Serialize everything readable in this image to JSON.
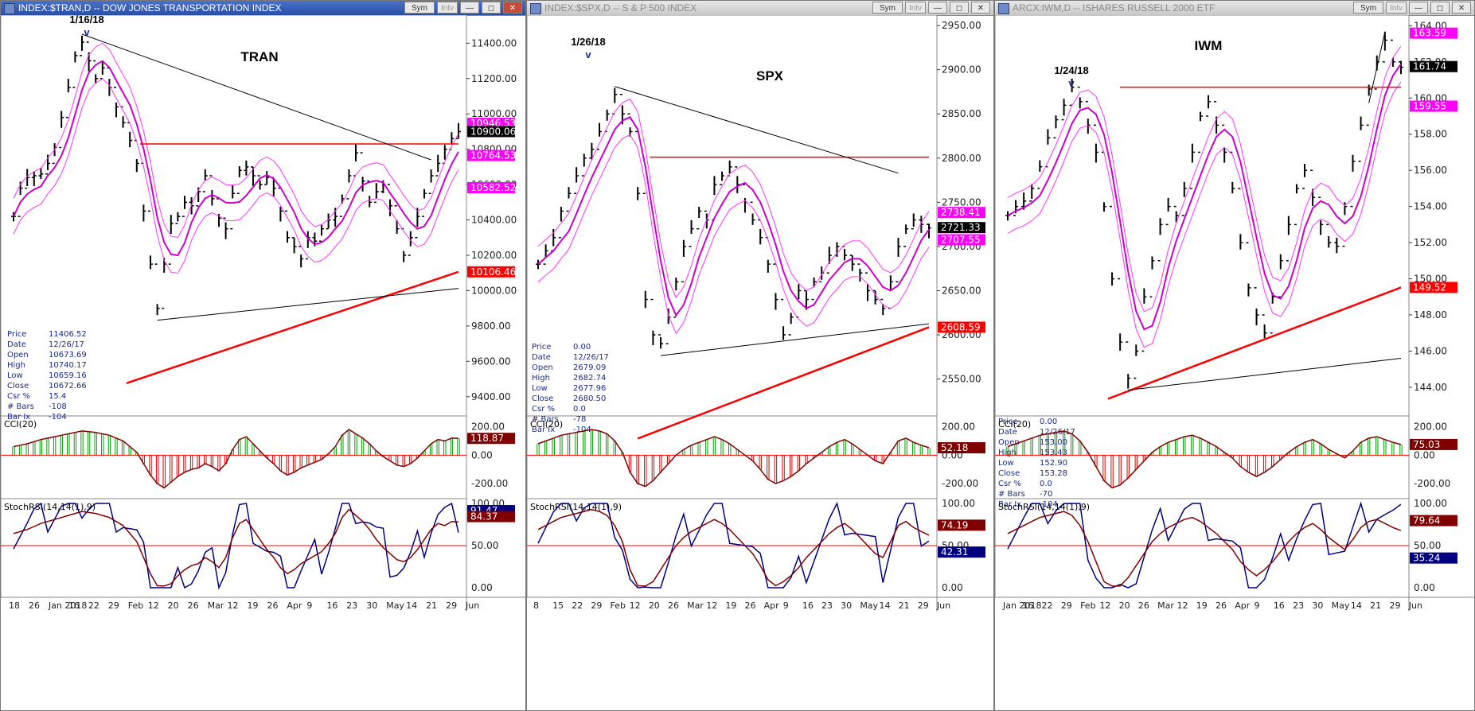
{
  "chart_data": [
    {
      "type": "bar",
      "window_title": "INDEX:$TRAN,D -- DOW JONES TRANSPORTATION INDEX",
      "title": "TRAN",
      "sym_btn": "Sym",
      "intv_btn": "Intv",
      "peak_date": "1/16/18",
      "peak_marker": "v",
      "price_ticks": [
        "11400.00",
        "11200.00",
        "11000.00",
        "10800.00",
        "10600.00",
        "10400.00",
        "10200.00",
        "10000.00",
        "9800.00",
        "9600.00",
        "9400.00"
      ],
      "price_values": [
        11400,
        11200,
        11000,
        10800,
        10600,
        10400,
        10200,
        10000,
        9800,
        9600,
        9400
      ],
      "ylim": [
        9300,
        11550
      ],
      "price_badges": [
        {
          "label": "10946.53",
          "value": 10946.53,
          "color": "#ff00ff",
          "text": "#fff"
        },
        {
          "label": "10900.06",
          "value": 10900.06,
          "color": "#000000",
          "text": "#fff"
        },
        {
          "label": "10764.53",
          "value": 10764.53,
          "color": "#ff00ff",
          "text": "#fff"
        },
        {
          "label": "10582.52",
          "value": 10582.52,
          "color": "#ff00ff",
          "text": "#fff"
        },
        {
          "label": "10106.46",
          "value": 10106.46,
          "color": "#ff0000",
          "text": "#fff"
        }
      ],
      "resistance": 10830,
      "closes": [
        10420,
        10580,
        10640,
        10650,
        10660,
        10720,
        10810,
        10980,
        11150,
        11330,
        11406,
        11300,
        11200,
        11260,
        11150,
        11040,
        10950,
        10850,
        10720,
        10450,
        10150,
        9900,
        10150,
        10380,
        10420,
        10500,
        10480,
        10560,
        10650,
        10520,
        10410,
        10350,
        10550,
        10680,
        10700,
        10650,
        10600,
        10640,
        10580,
        10450,
        10300,
        10250,
        10180,
        10300,
        10280,
        10350,
        10400,
        10420,
        10520,
        10650,
        10780,
        10620,
        10500,
        10560,
        10600,
        10480,
        10350,
        10200,
        10300,
        10420,
        10550,
        10650,
        10720,
        10800,
        10860,
        10900
      ],
      "info": {
        "Price": "11406.52",
        "Date": "12/26/17",
        "Open": "10673.69",
        "High": "10740.17",
        "Low": "10659.16",
        "Close": "10672.66",
        "Csr %": "15.4",
        "# Bars": "-108",
        "Bar Ix": "-104"
      },
      "cci_label": "CCI(20)",
      "cci_ticks": [
        "200.00",
        "0.00",
        "-200.00"
      ],
      "cci_values": [
        200,
        0,
        -200
      ],
      "cci_badge": {
        "label": "118.87",
        "color": "#800000"
      },
      "cci": [
        60,
        70,
        80,
        95,
        110,
        120,
        130,
        140,
        150,
        160,
        170,
        165,
        160,
        150,
        140,
        120,
        100,
        60,
        20,
        -60,
        -140,
        -200,
        -230,
        -190,
        -150,
        -120,
        -100,
        -90,
        -60,
        -80,
        -110,
        -60,
        40,
        110,
        130,
        80,
        30,
        -20,
        -60,
        -110,
        -140,
        -120,
        -90,
        -70,
        -50,
        -30,
        10,
        60,
        140,
        180,
        150,
        120,
        80,
        30,
        -10,
        -40,
        -70,
        -80,
        -60,
        -20,
        30,
        80,
        110,
        100,
        120,
        118
      ],
      "stoch_label": "StochRSI(14,14(1),9)",
      "stoch_ticks": [
        "100.00",
        "50.00",
        "0.00"
      ],
      "stoch_values": [
        100,
        50,
        0
      ],
      "stoch_badges": [
        {
          "label": "91.47",
          "color": "#000080"
        },
        {
          "label": "84.37",
          "color": "#800000"
        }
      ],
      "x_ticks": [
        "18",
        "26",
        "Jan 2018",
        "16",
        "22",
        "29",
        "Feb",
        "12",
        "20",
        "26",
        "Mar",
        "12",
        "19",
        "26",
        "Apr",
        "9",
        "16",
        "23",
        "30",
        "May",
        "14",
        "21",
        "29",
        "Jun"
      ]
    },
    {
      "type": "bar",
      "window_title": "INDEX:$SPX,D -- S & P 500 INDEX",
      "title": "SPX",
      "sym_btn": "Sym",
      "intv_btn": "Intv",
      "peak_date": "1/26/18",
      "peak_marker": "v",
      "price_ticks": [
        "2950.00",
        "2900.00",
        "2850.00",
        "2800.00",
        "2750.00",
        "2700.00",
        "2650.00",
        "2600.00",
        "2550.00"
      ],
      "price_values": [
        2950,
        2900,
        2850,
        2800,
        2750,
        2700,
        2650,
        2600,
        2550
      ],
      "ylim": [
        2510,
        2960
      ],
      "price_badges": [
        {
          "label": "2738.41",
          "value": 2738.41,
          "color": "#ff00ff",
          "text": "#fff"
        },
        {
          "label": "2721.33",
          "value": 2721.33,
          "color": "#000000",
          "text": "#fff"
        },
        {
          "label": "2707.55",
          "value": 2707.55,
          "color": "#ff00ff",
          "text": "#fff"
        },
        {
          "label": "2608.59",
          "value": 2608.59,
          "color": "#ff0000",
          "text": "#fff"
        }
      ],
      "resistance": 2801,
      "closes": [
        2680,
        2695,
        2710,
        2740,
        2760,
        2780,
        2800,
        2810,
        2830,
        2850,
        2872,
        2850,
        2830,
        2760,
        2640,
        2600,
        2590,
        2620,
        2660,
        2700,
        2720,
        2740,
        2730,
        2770,
        2780,
        2790,
        2770,
        2750,
        2730,
        2710,
        2680,
        2640,
        2600,
        2620,
        2650,
        2640,
        2660,
        2670,
        2690,
        2700,
        2690,
        2680,
        2670,
        2650,
        2640,
        2630,
        2660,
        2700,
        2720,
        2730,
        2725,
        2721
      ],
      "info": {
        "Price": "0.00",
        "Date": "12/26/17",
        "Open": "2679.09",
        "High": "2682.74",
        "Low": "2677.96",
        "Close": "2680.50",
        "Csr %": "0.0",
        "# Bars": "-78",
        "Bar Ix": "-104"
      },
      "cci_label": "CCI(20)",
      "cci_ticks": [
        "200.00",
        "0.00",
        "-200.00"
      ],
      "cci_values": [
        200,
        0,
        -200
      ],
      "cci_badge": {
        "label": "52.18",
        "color": "#800000"
      },
      "cci": [
        80,
        100,
        120,
        140,
        150,
        160,
        170,
        180,
        170,
        150,
        100,
        20,
        -120,
        -200,
        -220,
        -180,
        -120,
        -60,
        0,
        40,
        70,
        90,
        110,
        130,
        110,
        80,
        40,
        0,
        -40,
        -100,
        -170,
        -200,
        -180,
        -150,
        -110,
        -60,
        -20,
        20,
        60,
        90,
        110,
        80,
        40,
        0,
        -40,
        -60,
        20,
        100,
        120,
        90,
        70,
        52
      ],
      "stoch_label": "StochRSI(14,14(1),9)",
      "stoch_ticks": [
        "100.00",
        "50.00",
        "0.00"
      ],
      "stoch_values": [
        100,
        50,
        0
      ],
      "stoch_badges": [
        {
          "label": "74.19",
          "color": "#800000"
        },
        {
          "label": "42.31",
          "color": "#000080"
        }
      ],
      "x_ticks": [
        "8",
        "15",
        "22",
        "29",
        "Feb",
        "12",
        "20",
        "26",
        "Mar",
        "12",
        "19",
        "26",
        "Apr",
        "9",
        "16",
        "23",
        "30",
        "May",
        "14",
        "21",
        "29",
        "Jun"
      ]
    },
    {
      "type": "bar",
      "window_title": "ARCX:IWM,D -- ISHARES RUSSELL 2000 ETF",
      "title": "IWM",
      "sym_btn": "Sym",
      "intv_btn": "Intv",
      "peak_date": "1/24/18",
      "peak_marker": "v",
      "price_ticks": [
        "164.00",
        "162.00",
        "160.00",
        "158.00",
        "156.00",
        "154.00",
        "152.00",
        "150.00",
        "148.00",
        "146.00",
        "144.00"
      ],
      "price_values": [
        164,
        162,
        160,
        158,
        156,
        154,
        152,
        150,
        148,
        146,
        144
      ],
      "ylim": [
        142.5,
        164.5
      ],
      "price_badges": [
        {
          "label": "163.59",
          "value": 163.59,
          "color": "#ff00ff",
          "text": "#fff"
        },
        {
          "label": "161.74",
          "value": 161.74,
          "color": "#000000",
          "text": "#fff"
        },
        {
          "label": "159.55",
          "value": 159.55,
          "color": "#ff00ff",
          "text": "#fff"
        },
        {
          "label": "149.52",
          "value": 149.52,
          "color": "#ff0000",
          "text": "#fff"
        }
      ],
      "resistance": 160.6,
      "closes": [
        153.5,
        154.0,
        154.3,
        155.0,
        156.2,
        157.8,
        158.8,
        159.6,
        160.6,
        159.8,
        158.5,
        157.0,
        154.0,
        150.0,
        146.5,
        144.5,
        146.0,
        149.0,
        151.0,
        153.0,
        154.0,
        153.5,
        155.0,
        157.0,
        159.0,
        159.8,
        158.5,
        157.0,
        155.0,
        152.0,
        149.5,
        148.0,
        147.0,
        149.0,
        151.0,
        153.0,
        155.0,
        156.0,
        154.5,
        153.0,
        152.0,
        151.8,
        154.0,
        156.5,
        158.5,
        160.5,
        162.0,
        163.2,
        162.0,
        161.7
      ],
      "info": {
        "Price": "0.00",
        "Date": "12/26/17",
        "Open": "153.00",
        "High": "153.43",
        "Low": "152.90",
        "Close": "153.28",
        "Csr %": "0.0",
        "# Bars": "-70",
        "Bar Ix": "-104"
      },
      "cci_label": "CCI(20)",
      "cci_ticks": [
        "200.00",
        "0.00",
        "-200.00"
      ],
      "cci_values": [
        200,
        0,
        -200
      ],
      "cci_badge": {
        "label": "75.03",
        "color": "#800000"
      },
      "cci": [
        60,
        80,
        100,
        120,
        140,
        150,
        160,
        170,
        150,
        100,
        20,
        -80,
        -180,
        -230,
        -210,
        -160,
        -100,
        -40,
        20,
        60,
        90,
        110,
        130,
        140,
        120,
        90,
        60,
        20,
        -20,
        -80,
        -120,
        -150,
        -120,
        -80,
        -30,
        20,
        60,
        90,
        110,
        80,
        40,
        10,
        -20,
        30,
        90,
        120,
        130,
        110,
        90,
        75
      ],
      "stoch_label": "StochRSI(14,14(1),9)",
      "stoch_ticks": [
        "100.00",
        "50.00",
        "0.00"
      ],
      "stoch_values": [
        100,
        50,
        0
      ],
      "stoch_badges": [
        {
          "label": "79.64",
          "color": "#800000"
        },
        {
          "label": "35.24",
          "color": "#000080"
        }
      ],
      "x_ticks": [
        "Jan 2018",
        "16",
        "22",
        "29",
        "Feb",
        "12",
        "20",
        "26",
        "Mar",
        "12",
        "19",
        "26",
        "Apr",
        "9",
        "16",
        "23",
        "30",
        "May",
        "14",
        "21",
        "29",
        "Jun"
      ]
    }
  ]
}
